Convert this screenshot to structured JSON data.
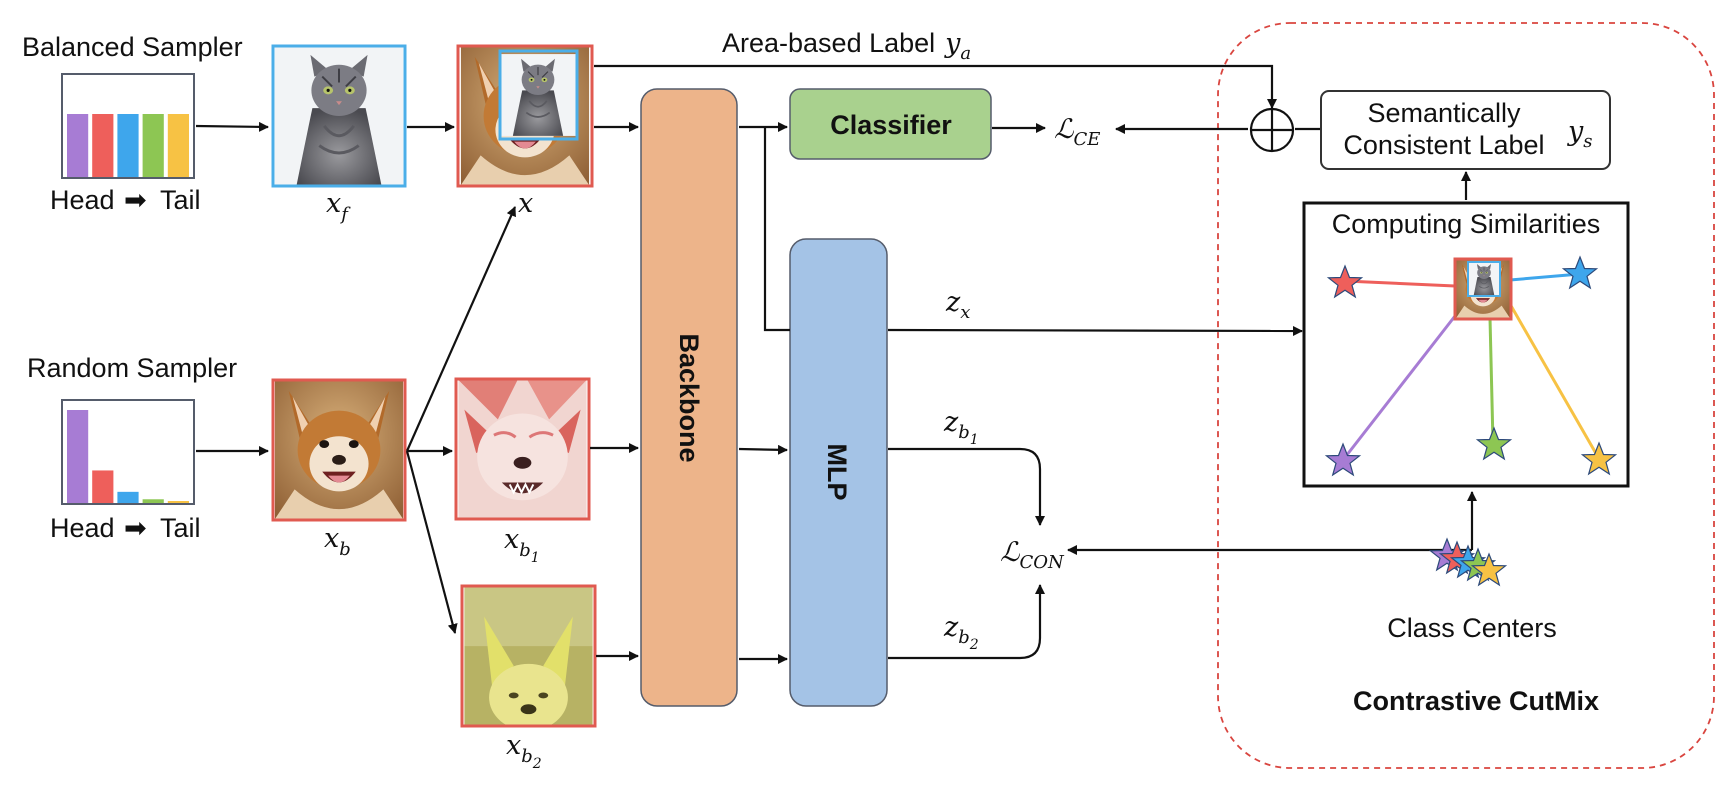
{
  "samplers": {
    "balanced": {
      "title": "Balanced Sampler",
      "head": "Head",
      "tail": "Tail",
      "arrow_glyph": "➡"
    },
    "random": {
      "title": "Random Sampler",
      "head": "Head",
      "tail": "Tail",
      "arrow_glyph": "➡"
    }
  },
  "balanced_bars": [
    {
      "value": 1,
      "color": "#A77CD4"
    },
    {
      "value": 1,
      "color": "#EE5F5B"
    },
    {
      "value": 1,
      "color": "#3EA6EC"
    },
    {
      "value": 1,
      "color": "#8DC653"
    },
    {
      "value": 1,
      "color": "#F7C244"
    }
  ],
  "random_bars": [
    {
      "value": 1.0,
      "color": "#A77CD4"
    },
    {
      "value": 0.35,
      "color": "#EE5F5B"
    },
    {
      "value": 0.12,
      "color": "#3EA6EC"
    },
    {
      "value": 0.04,
      "color": "#8DC653"
    },
    {
      "value": 0.02,
      "color": "#F7C244"
    }
  ],
  "images": {
    "x_f": {
      "symbol": "x",
      "subscript": "f",
      "content": "cat-photo",
      "frame_color": "#4BAEE8"
    },
    "x": {
      "symbol": "x",
      "content": "cutmix-cat-on-dog",
      "frame_color": "#E05A50",
      "patch_color": "#4BAEE8"
    },
    "x_b": {
      "symbol": "x",
      "subscript": "b",
      "content": "dog-photo",
      "frame_color": "#E05A50"
    },
    "x_b1": {
      "symbol": "x",
      "subscript": "b",
      "subsub": "1",
      "content": "dog-augmented-red",
      "frame_color": "#E05A50"
    },
    "x_b2": {
      "symbol": "x",
      "subscript": "b",
      "subsub": "2",
      "content": "dog-augmented-yellow",
      "frame_color": "#E05A50"
    }
  },
  "blocks": {
    "backbone": {
      "label": "Backbone",
      "color": "#EDB48A"
    },
    "mlp": {
      "label": "MLP",
      "color": "#A4C3E6"
    },
    "classifier": {
      "label": "Classifier",
      "color": "#A9D18E"
    }
  },
  "labels": {
    "area_label": {
      "text": "Area-based Label",
      "symbol": "y",
      "subscript": "a"
    },
    "semantic_label": {
      "line1": "Semantically",
      "line2": "Consistent Label",
      "symbol": "y",
      "subscript": "s"
    },
    "l_ce": {
      "symbol": "ℒ",
      "subscript": "CE"
    },
    "l_con": {
      "symbol": "ℒ",
      "subscript": "CON"
    },
    "z_x": {
      "symbol": "z",
      "subscript": "x"
    },
    "z_b1": {
      "symbol": "z",
      "subscript": "b",
      "subsub": "1"
    },
    "z_b2": {
      "symbol": "z",
      "subscript": "b",
      "subsub": "2"
    }
  },
  "similarity_panel": {
    "title": "Computing Similarities",
    "star_colors": [
      "#EE5F5B",
      "#3EA6EC",
      "#A77CD4",
      "#8DC653",
      "#F7C244"
    ]
  },
  "class_centers": {
    "label": "Class Centers",
    "star_colors": [
      "#A77CD4",
      "#EE5F5B",
      "#3EA6EC",
      "#8DC653",
      "#F7C244"
    ]
  },
  "module": {
    "title": "Contrastive CutMix",
    "border_color": "#D9453F"
  }
}
